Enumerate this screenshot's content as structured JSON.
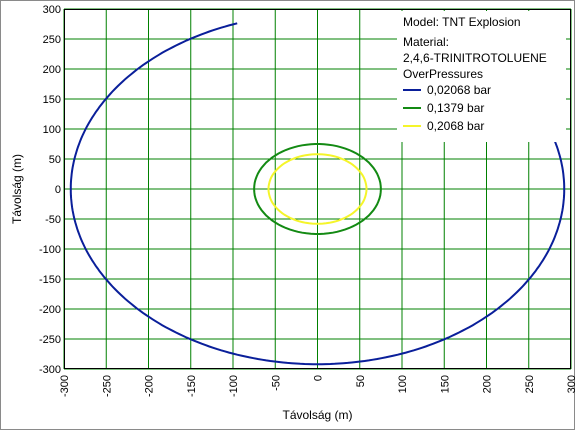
{
  "chart_data": {
    "type": "line",
    "xlabel": "Távolság (m)",
    "ylabel": "Távolság (m)",
    "xlim": [
      -300,
      300
    ],
    "ylim": [
      -300,
      300
    ],
    "xticks": [
      "-300",
      "-250",
      "-200",
      "-150",
      "-100",
      "-50",
      "0",
      "50",
      "100",
      "150",
      "200",
      "250",
      "300"
    ],
    "yticks": [
      "300",
      "250",
      "200",
      "150",
      "100",
      "50",
      "0",
      "-50",
      "-100",
      "-150",
      "-200",
      "-250",
      "-300"
    ],
    "grid": true,
    "grid_color": "#008000",
    "legend_position": "top-right",
    "legend": {
      "model": "Model: TNT Explosion",
      "material_label": "Material:",
      "material": "2,4,6-TRINITROTOLUENE",
      "group": "OverPressures"
    },
    "series": [
      {
        "name": "0,02068 bar",
        "color": "#0a1f9a",
        "radius": 292
      },
      {
        "name": "0,1379 bar",
        "color": "#138a13",
        "radius": 75
      },
      {
        "name": "0,2068 bar",
        "color": "#f5f52a",
        "radius": 58
      }
    ]
  }
}
